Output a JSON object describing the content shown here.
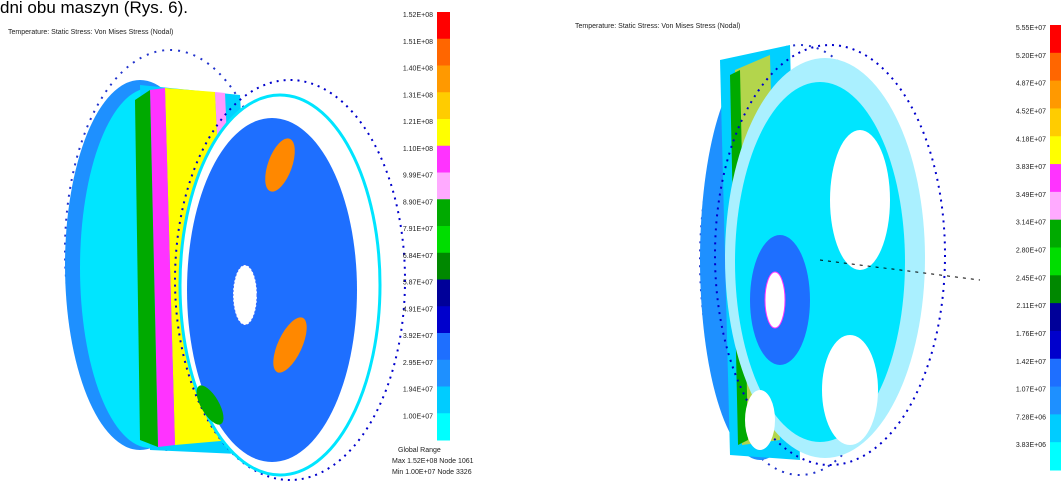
{
  "heading": "dni obu maszyn (Rys. 6).",
  "figures": [
    {
      "title": "Temperature: Static Stress: Von Mises Stress (Nodal)",
      "colorbar_labels": [
        "1.52E+08",
        "1.51E+08",
        "1.40E+08",
        "1.31E+08",
        "1.21E+08",
        "1.10E+08",
        "9.99E+07",
        "8.90E+07",
        "7.91E+07",
        "6.84E+07",
        "5.87E+07",
        "4.91E+07",
        "3.92E+07",
        "2.95E+07",
        "1.94E+07",
        "1.00E+07"
      ],
      "footer": [
        "Global Range",
        "Max 1.52E+08 Node 1061",
        "Min 1.00E+07 Node 3326"
      ]
    },
    {
      "title": "Temperature: Static Stress: Von Mises Stress (Nodal)",
      "colorbar_labels": [
        "5.55E+07",
        "5.20E+07",
        "4.87E+07",
        "4.52E+07",
        "4.18E+07",
        "3.83E+07",
        "3.49E+07",
        "3.14E+07",
        "2.80E+07",
        "2.45E+07",
        "2.11E+07",
        "1.76E+07",
        "1.42E+07",
        "1.07E+07",
        "7.28E+06",
        "3.83E+06"
      ]
    }
  ]
}
